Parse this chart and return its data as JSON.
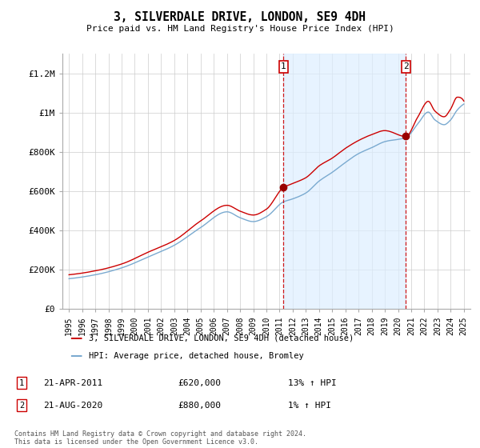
{
  "title": "3, SILVERDALE DRIVE, LONDON, SE9 4DH",
  "subtitle": "Price paid vs. HM Land Registry's House Price Index (HPI)",
  "ylim": [
    0,
    1300000
  ],
  "yticks": [
    0,
    200000,
    400000,
    600000,
    800000,
    1000000,
    1200000
  ],
  "ytick_labels": [
    "£0",
    "£200K",
    "£400K",
    "£600K",
    "£800K",
    "£1M",
    "£1.2M"
  ],
  "x_start_year": 1995,
  "x_end_year": 2025,
  "sale1_year": 2011.3,
  "sale1_price": 620000,
  "sale1_label": "1",
  "sale1_date": "21-APR-2011",
  "sale1_hpi": "13% ↑ HPI",
  "sale2_year": 2020.6,
  "sale2_price": 880000,
  "sale2_label": "2",
  "sale2_date": "21-AUG-2020",
  "sale2_hpi": "1% ↑ HPI",
  "line_color_house": "#cc0000",
  "line_color_hpi": "#7aaad0",
  "fill_color_between": "#ddeeff",
  "background_color": "#ffffff",
  "legend_label_house": "3, SILVERDALE DRIVE, LONDON, SE9 4DH (detached house)",
  "legend_label_hpi": "HPI: Average price, detached house, Bromley",
  "footer": "Contains HM Land Registry data © Crown copyright and database right 2024.\nThis data is licensed under the Open Government Licence v3.0."
}
